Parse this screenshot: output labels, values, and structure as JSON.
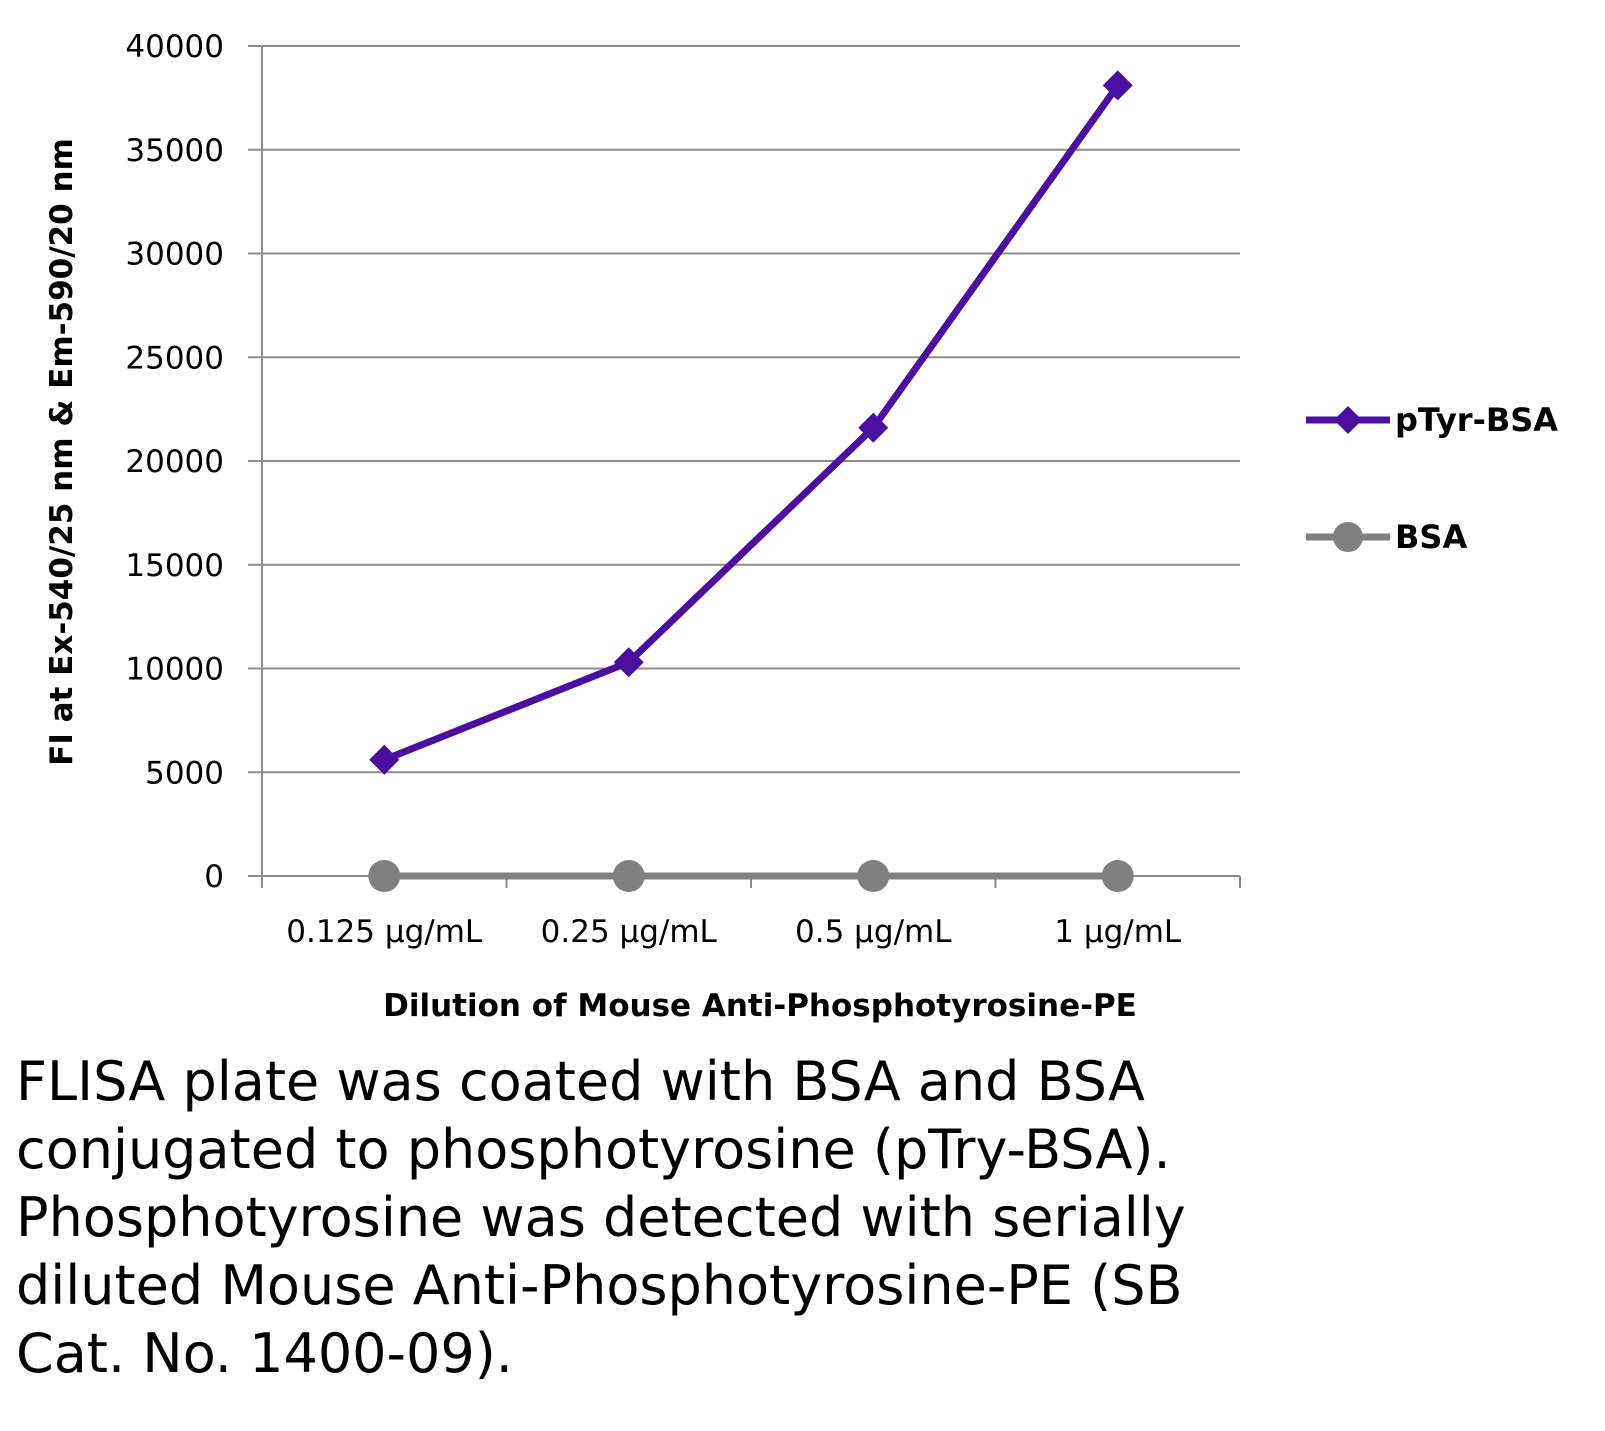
{
  "chart_data": {
    "type": "line",
    "categories": [
      "0.125 µg/mL",
      "0.25 µg/mL",
      "0.5 µg/mL",
      "1 µg/mL"
    ],
    "series": [
      {
        "name": "pTyr-BSA",
        "values": [
          5600,
          10300,
          21600,
          38100
        ],
        "color": "#4b0fa0",
        "marker": "diamond"
      },
      {
        "name": "BSA",
        "values": [
          0,
          0,
          0,
          0
        ],
        "color": "#808080",
        "marker": "circle"
      }
    ],
    "xlabel": "Dilution of Mouse Anti-Phosphotyrosine-PE",
    "ylabel": "FI at Ex-540/25 nm & Em-590/20 nm",
    "ylim": [
      0,
      40000
    ],
    "yticks": [
      0,
      5000,
      10000,
      15000,
      20000,
      25000,
      30000,
      35000,
      40000
    ],
    "grid": true,
    "legend_position": "right"
  },
  "caption": "FLISA plate was coated with BSA and BSA\nconjugated to phosphotyrosine (pTry-BSA).\nPhosphotyrosine was detected with serially\ndiluted Mouse Anti-Phosphotyrosine-PE (SB\nCat. No. 1400-09)."
}
